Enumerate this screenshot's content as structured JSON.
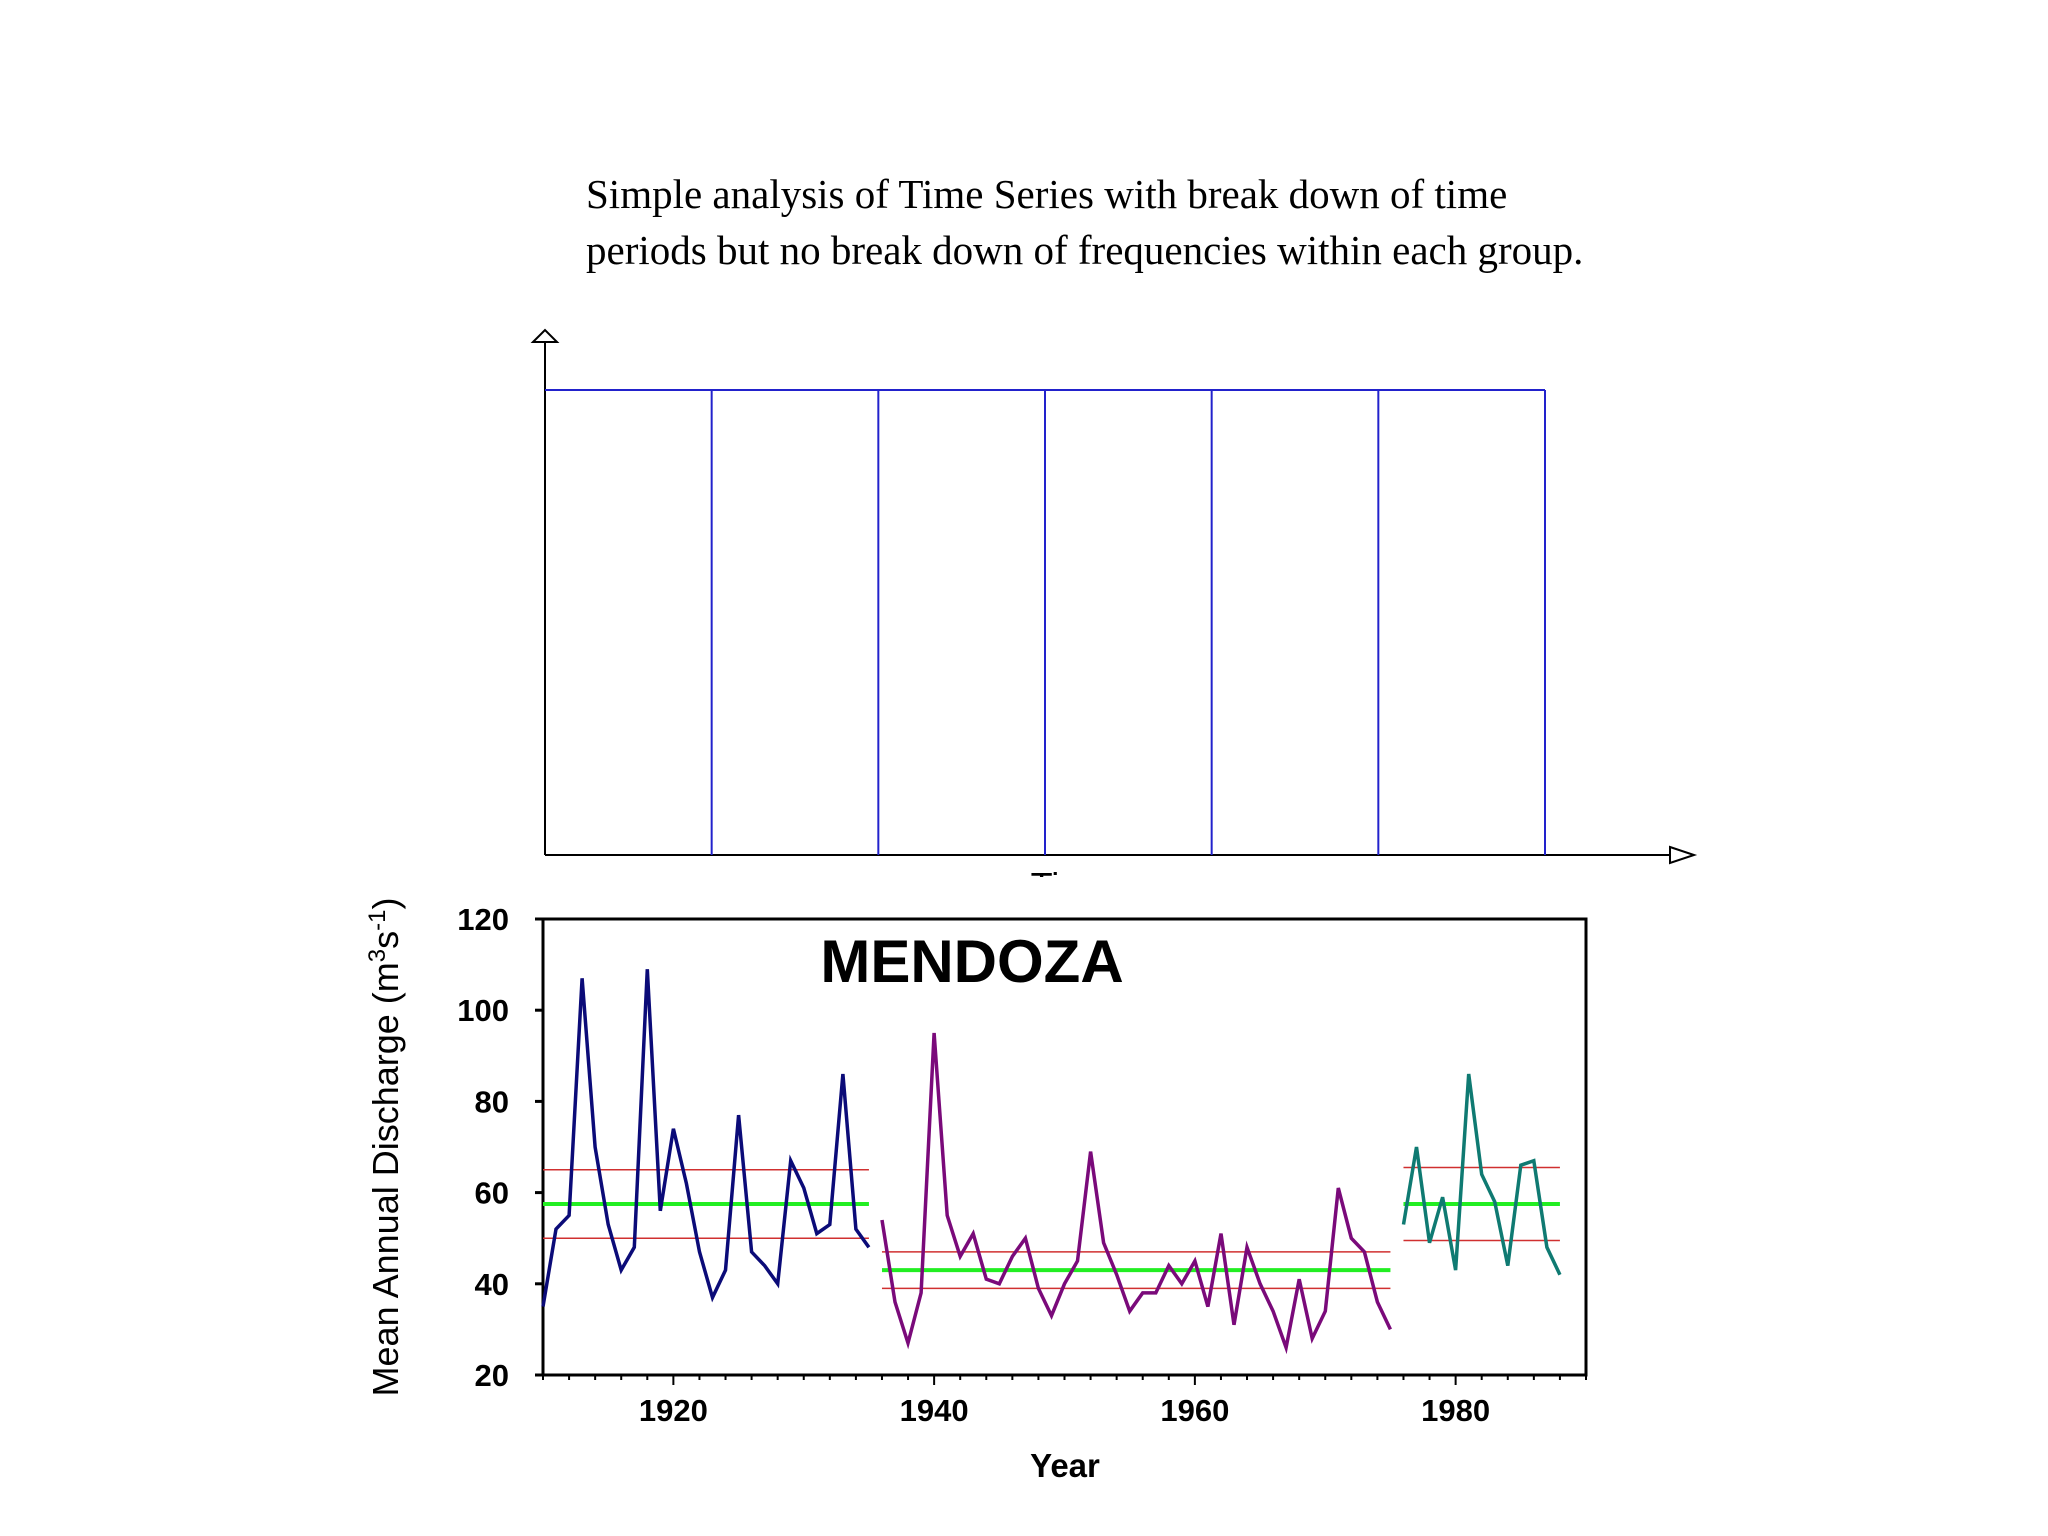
{
  "caption": {
    "line1": "Simple analysis of Time Series with break down of time",
    "line2": "periods but no break down of frequencies within each group."
  },
  "schematic": {
    "xlabel": "Time",
    "segments": 6,
    "line_color": "#2222cc"
  },
  "chart_data": {
    "type": "line",
    "title": "MENDOZA",
    "xlabel": "Year",
    "ylabel": "Mean Annual Discharge (m3s-1)",
    "ylabel_parts": {
      "main": "Mean Annual Discharge (m",
      "sup1": "3",
      "mid": "s",
      "sup2": "-1",
      "end": ")"
    },
    "xlim": [
      1910,
      1990
    ],
    "ylim": [
      20,
      120
    ],
    "xticks": [
      1920,
      1940,
      1960,
      1980
    ],
    "yticks": [
      20,
      40,
      60,
      80,
      100,
      120
    ],
    "grid": false,
    "series": [
      {
        "color": "#0b0b78",
        "x": [
          1910,
          1911,
          1912,
          1913,
          1914,
          1915,
          1916,
          1917,
          1918,
          1919,
          1920,
          1921,
          1922,
          1923,
          1924,
          1925,
          1926,
          1927,
          1928,
          1929,
          1930,
          1931,
          1932,
          1933,
          1934,
          1935
        ],
        "y": [
          35,
          52,
          55,
          107,
          70,
          53,
          43,
          48,
          109,
          56,
          74,
          62,
          47,
          37,
          43,
          77,
          47,
          44,
          40,
          67,
          61,
          51,
          53,
          86,
          52,
          48
        ],
        "mean": 57.5,
        "band": [
          50,
          65
        ]
      },
      {
        "color": "#7a0a7a",
        "x": [
          1936,
          1937,
          1938,
          1939,
          1940,
          1941,
          1942,
          1943,
          1944,
          1945,
          1946,
          1947,
          1948,
          1949,
          1950,
          1951,
          1952,
          1953,
          1954,
          1955,
          1956,
          1957,
          1958,
          1959,
          1960,
          1961,
          1962,
          1963,
          1964,
          1965,
          1966,
          1967,
          1968,
          1969,
          1970,
          1971,
          1972,
          1973,
          1974,
          1975
        ],
        "y": [
          54,
          36,
          27,
          38,
          95,
          55,
          46,
          51,
          41,
          40,
          46,
          50,
          39,
          33,
          40,
          45,
          69,
          49,
          42,
          34,
          38,
          38,
          44,
          40,
          45,
          35,
          51,
          31,
          48,
          40,
          34,
          26,
          41,
          28,
          34,
          61,
          50,
          47,
          36,
          30
        ],
        "mean": 43,
        "band": [
          39,
          47
        ]
      },
      {
        "color": "#0f7a72",
        "x": [
          1976,
          1977,
          1978,
          1979,
          1980,
          1981,
          1982,
          1983,
          1984,
          1985,
          1986,
          1987,
          1988
        ],
        "y": [
          53,
          70,
          49,
          59,
          43,
          86,
          64,
          58,
          44,
          66,
          67,
          48,
          42
        ],
        "mean": 57.5,
        "band": [
          49.5,
          65.5
        ]
      }
    ],
    "mean_color": "#22ee22",
    "band_color": "#d03030"
  }
}
